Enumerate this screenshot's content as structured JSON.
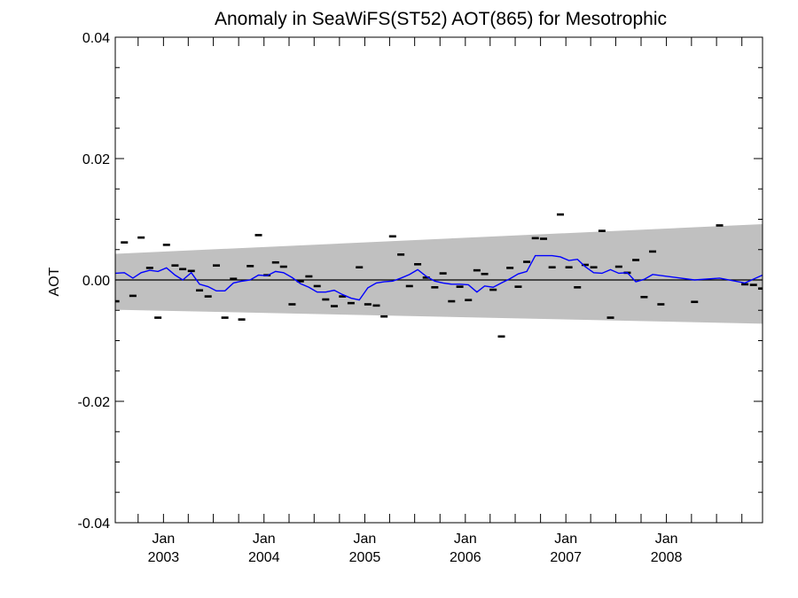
{
  "chart_data": {
    "type": "scatter",
    "title": "Anomaly in SeaWiFS(ST52) AOT(865) for Mesotrophic",
    "xlabel": "",
    "ylabel": "AOT",
    "xlim": [
      "2002-07-10",
      "2008-12-15"
    ],
    "ylim": [
      -0.04,
      0.04
    ],
    "grid": false,
    "x_ticks": [
      {
        "month": "Jan",
        "year": "2003",
        "date": "2003-01-01"
      },
      {
        "month": "Jan",
        "year": "2004",
        "date": "2004-01-01"
      },
      {
        "month": "Jan",
        "year": "2005",
        "date": "2005-01-01"
      },
      {
        "month": "Jan",
        "year": "2006",
        "date": "2006-01-01"
      },
      {
        "month": "Jan",
        "year": "2007",
        "date": "2007-01-01"
      },
      {
        "month": "Jan",
        "year": "2008",
        "date": "2008-01-01"
      }
    ],
    "y_ticks": [
      "0.04",
      "0.02",
      "0.00",
      "-0.02",
      "-0.04"
    ],
    "y_tick_values": [
      0.04,
      0.02,
      0.0,
      -0.02,
      -0.04
    ],
    "zero_line": 0.0,
    "colors": {
      "band": "#c0c0c0",
      "trend": "#0000ff",
      "points": "#000000",
      "axis": "#000000"
    },
    "uncertainty_band": {
      "x": [
        "2002-07-10",
        "2008-12-15"
      ],
      "upper": [
        0.0043,
        0.0092
      ],
      "lower": [
        -0.0049,
        -0.0072
      ]
    },
    "points": [
      {
        "x": "2002-07-12",
        "y": -0.0035
      },
      {
        "x": "2002-08-12",
        "y": 0.0062
      },
      {
        "x": "2002-09-12",
        "y": -0.0026
      },
      {
        "x": "2002-10-12",
        "y": 0.007
      },
      {
        "x": "2002-11-12",
        "y": 0.002
      },
      {
        "x": "2002-12-12",
        "y": -0.0062
      },
      {
        "x": "2003-01-12",
        "y": 0.0058
      },
      {
        "x": "2003-02-12",
        "y": 0.0024
      },
      {
        "x": "2003-03-12",
        "y": 0.0018
      },
      {
        "x": "2003-04-12",
        "y": 0.0015
      },
      {
        "x": "2003-05-12",
        "y": -0.0017
      },
      {
        "x": "2003-06-12",
        "y": -0.0027
      },
      {
        "x": "2003-07-12",
        "y": 0.0024
      },
      {
        "x": "2003-08-12",
        "y": -0.0062
      },
      {
        "x": "2003-09-12",
        "y": 0.0002
      },
      {
        "x": "2003-10-12",
        "y": -0.0065
      },
      {
        "x": "2003-11-12",
        "y": 0.0023
      },
      {
        "x": "2003-12-12",
        "y": 0.0074
      },
      {
        "x": "2004-01-12",
        "y": 0.0008
      },
      {
        "x": "2004-02-12",
        "y": 0.0029
      },
      {
        "x": "2004-03-12",
        "y": 0.0022
      },
      {
        "x": "2004-04-12",
        "y": -0.004
      },
      {
        "x": "2004-05-12",
        "y": -0.0002
      },
      {
        "x": "2004-06-12",
        "y": 0.0006
      },
      {
        "x": "2004-07-12",
        "y": -0.001
      },
      {
        "x": "2004-08-12",
        "y": -0.0032
      },
      {
        "x": "2004-09-12",
        "y": -0.0043
      },
      {
        "x": "2004-10-12",
        "y": -0.0027
      },
      {
        "x": "2004-11-12",
        "y": -0.0038
      },
      {
        "x": "2004-12-12",
        "y": 0.0021
      },
      {
        "x": "2005-01-12",
        "y": -0.004
      },
      {
        "x": "2005-02-12",
        "y": -0.0042
      },
      {
        "x": "2005-03-12",
        "y": -0.006
      },
      {
        "x": "2005-04-12",
        "y": 0.0072
      },
      {
        "x": "2005-05-12",
        "y": 0.0042
      },
      {
        "x": "2005-06-12",
        "y": -0.001
      },
      {
        "x": "2005-07-12",
        "y": 0.0026
      },
      {
        "x": "2005-08-12",
        "y": 0.0004
      },
      {
        "x": "2005-09-12",
        "y": -0.0012
      },
      {
        "x": "2005-10-12",
        "y": 0.0011
      },
      {
        "x": "2005-11-12",
        "y": -0.0035
      },
      {
        "x": "2005-12-12",
        "y": -0.0011
      },
      {
        "x": "2006-01-12",
        "y": -0.0033
      },
      {
        "x": "2006-02-12",
        "y": 0.0016
      },
      {
        "x": "2006-03-12",
        "y": 0.001
      },
      {
        "x": "2006-04-12",
        "y": -0.0016
      },
      {
        "x": "2006-05-12",
        "y": -0.0093
      },
      {
        "x": "2006-06-12",
        "y": 0.002
      },
      {
        "x": "2006-07-12",
        "y": -0.0011
      },
      {
        "x": "2006-08-12",
        "y": 0.003
      },
      {
        "x": "2006-09-12",
        "y": 0.0069
      },
      {
        "x": "2006-10-12",
        "y": 0.0068
      },
      {
        "x": "2006-11-12",
        "y": 0.0021
      },
      {
        "x": "2006-12-12",
        "y": 0.0108
      },
      {
        "x": "2007-01-12",
        "y": 0.0021
      },
      {
        "x": "2007-02-12",
        "y": -0.0012
      },
      {
        "x": "2007-03-12",
        "y": 0.0025
      },
      {
        "x": "2007-04-12",
        "y": 0.0021
      },
      {
        "x": "2007-05-12",
        "y": 0.0081
      },
      {
        "x": "2007-06-12",
        "y": -0.0062
      },
      {
        "x": "2007-07-12",
        "y": 0.0022
      },
      {
        "x": "2007-08-12",
        "y": 0.0012
      },
      {
        "x": "2007-09-12",
        "y": 0.0033
      },
      {
        "x": "2007-10-12",
        "y": -0.0028
      },
      {
        "x": "2007-11-12",
        "y": 0.0047
      },
      {
        "x": "2007-12-12",
        "y": -0.004
      },
      {
        "x": "2008-04-12",
        "y": -0.0036
      },
      {
        "x": "2008-07-12",
        "y": 0.009
      },
      {
        "x": "2008-10-12",
        "y": -0.0007
      },
      {
        "x": "2008-11-12",
        "y": -0.0008
      },
      {
        "x": "2008-12-12",
        "y": -0.0014
      }
    ],
    "trend": {
      "x": [
        "2002-07-10",
        "2002-08-12",
        "2002-09-12",
        "2002-10-12",
        "2002-11-12",
        "2002-12-12",
        "2003-01-12",
        "2003-02-12",
        "2003-03-12",
        "2003-04-12",
        "2003-05-12",
        "2003-06-12",
        "2003-07-12",
        "2003-08-12",
        "2003-09-12",
        "2003-10-12",
        "2003-11-12",
        "2003-12-12",
        "2004-01-12",
        "2004-02-12",
        "2004-03-12",
        "2004-04-12",
        "2004-05-12",
        "2004-06-12",
        "2004-07-12",
        "2004-08-12",
        "2004-09-12",
        "2004-10-12",
        "2004-11-12",
        "2004-12-12",
        "2005-01-12",
        "2005-02-12",
        "2005-03-12",
        "2005-04-12",
        "2005-05-12",
        "2005-06-12",
        "2005-07-12",
        "2005-08-12",
        "2005-09-12",
        "2005-10-12",
        "2005-11-12",
        "2005-12-12",
        "2006-01-12",
        "2006-02-12",
        "2006-03-12",
        "2006-04-12",
        "2006-05-12",
        "2006-06-12",
        "2006-07-12",
        "2006-08-12",
        "2006-09-12",
        "2006-10-12",
        "2006-11-12",
        "2006-12-12",
        "2007-01-12",
        "2007-02-12",
        "2007-03-12",
        "2007-04-12",
        "2007-05-12",
        "2007-06-12",
        "2007-07-12",
        "2007-08-12",
        "2007-09-12",
        "2007-10-12",
        "2007-11-12",
        "2008-04-12",
        "2008-07-12",
        "2008-10-12",
        "2008-12-15"
      ],
      "y": [
        0.0011,
        0.0012,
        0.0003,
        0.0012,
        0.0016,
        0.0014,
        0.002,
        0.0008,
        0.0,
        0.0012,
        -0.0007,
        -0.0011,
        -0.0018,
        -0.0018,
        -0.0005,
        -0.0002,
        0.0,
        0.0008,
        0.0007,
        0.0014,
        0.0012,
        0.0004,
        -0.0006,
        -0.0012,
        -0.002,
        -0.002,
        -0.0017,
        -0.0024,
        -0.003,
        -0.0033,
        -0.0013,
        -0.0005,
        -0.0003,
        -0.0002,
        0.0003,
        0.0009,
        0.0017,
        0.0006,
        -0.0002,
        -0.0005,
        -0.0007,
        -0.0007,
        -0.0008,
        -0.002,
        -0.001,
        -0.0012,
        -0.0005,
        0.0002,
        0.001,
        0.0014,
        0.004,
        0.004,
        0.004,
        0.0038,
        0.0032,
        0.0034,
        0.0022,
        0.0012,
        0.0011,
        0.0017,
        0.0011,
        0.0012,
        -0.0003,
        0.0001,
        0.0009,
        0.0,
        0.0003,
        -0.0005,
        0.0008
      ]
    }
  }
}
